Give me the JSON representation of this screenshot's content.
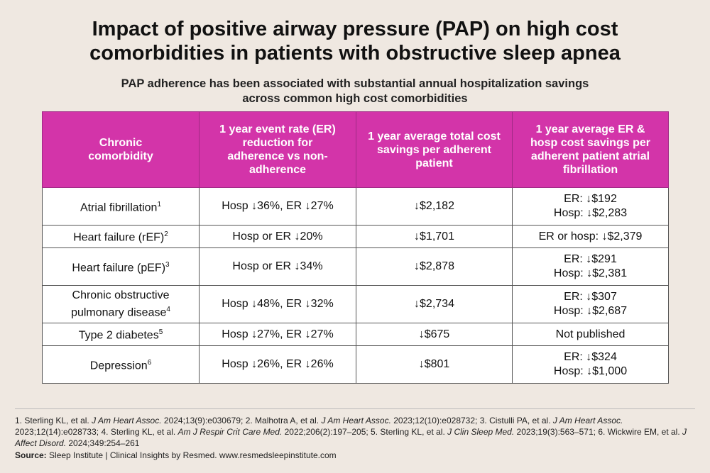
{
  "title_line1": "Impact of positive airway pressure (PAP) on high cost",
  "title_line2": "comorbidities in patients with obstructive sleep apnea",
  "subtitle_line1": "PAP adherence has been associated with substantial annual hospitalization savings",
  "subtitle_line2": "across common high cost comorbidities",
  "table": {
    "headers": [
      "Chronic comorbidity",
      "1 year event rate (ER) reduction for adherence vs non-adherence",
      "1 year average total cost savings per adherent patient",
      "1 year average ER & hosp cost savings per adherent patient atrial fibrillation"
    ],
    "rows": [
      {
        "name": "Atrial fibrillation",
        "ref": "1",
        "rate": "Hosp ↓36%, ER ↓27%",
        "total": "↓$2,182",
        "er_hosp": [
          "ER: ↓$192",
          "Hosp: ↓$2,283"
        ]
      },
      {
        "name": "Heart failure (rEF)",
        "ref": "2",
        "rate": "Hosp or ER ↓20%",
        "total": "↓$1,701",
        "er_hosp": [
          "ER or hosp: ↓$2,379"
        ]
      },
      {
        "name": "Heart failure (pEF)",
        "ref": "3",
        "rate": "Hosp or ER ↓34%",
        "total": "↓$2,878",
        "er_hosp": [
          "ER: ↓$291",
          "Hosp: ↓$2,381"
        ]
      },
      {
        "name": "Chronic obstructive pulmonary disease",
        "ref": "4",
        "rate": "Hosp ↓48%, ER ↓32%",
        "total": "↓$2,734",
        "er_hosp": [
          "ER: ↓$307",
          "Hosp: ↓$2,687"
        ]
      },
      {
        "name": "Type 2 diabetes",
        "ref": "5",
        "rate": "Hosp ↓27%, ER ↓27%",
        "total": "↓$675",
        "er_hosp": [
          "Not published"
        ]
      },
      {
        "name": "Depression",
        "ref": "6",
        "rate": "Hosp ↓26%, ER ↓26%",
        "total": "↓$801",
        "er_hosp": [
          "ER: ↓$324",
          "Hosp: ↓$1,000"
        ]
      }
    ]
  },
  "references": [
    {
      "num": "1.",
      "authors": "Sterling KL, et al.",
      "journal": "J Am Heart Assoc.",
      "cite": "2024;13(9):e030679;"
    },
    {
      "num": "2.",
      "authors": "Malhotra A, et al.",
      "journal": "J Am Heart Assoc.",
      "cite": "2023;12(10):e028732;"
    },
    {
      "num": "3.",
      "authors": "Cistulli PA, et al.",
      "journal": "J Am Heart Assoc.",
      "cite": "2023;12(14):e028733;"
    },
    {
      "num": "4.",
      "authors": "Sterling KL, et al.",
      "journal": "Am J Respir Crit Care Med.",
      "cite": "2022;206(2):197–205;"
    },
    {
      "num": "5.",
      "authors": "Sterling KL, et al.",
      "journal": "J Clin Sleep Med.",
      "cite": "2023;19(3):563–571;"
    },
    {
      "num": "6.",
      "authors": "Wickwire EM, et al.",
      "journal": "J Affect Disord.",
      "cite": "2024;349:254–261"
    }
  ],
  "source_label": "Source:",
  "source_text": "Sleep Institute | Clinical Insights by Resmed. www.resmedsleepinstitute.com"
}
